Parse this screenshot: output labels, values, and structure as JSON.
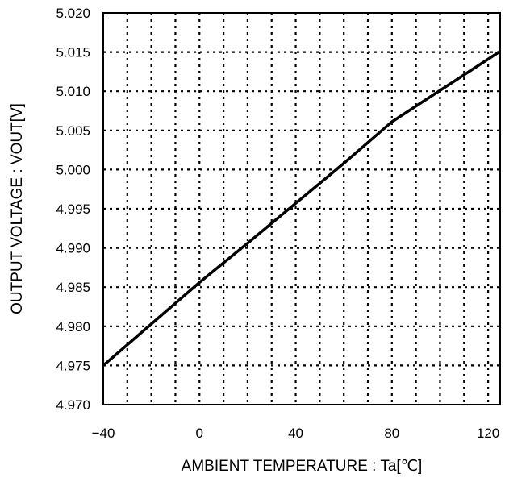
{
  "chart_data": {
    "type": "line",
    "title": "",
    "xlabel": "AMBIENT TEMPERATURE : Ta[℃]",
    "ylabel": "OUTPUT VOLTAGE : VOUT[V]",
    "xlim": [
      -40,
      125
    ],
    "ylim": [
      4.97,
      5.02
    ],
    "x_ticks": [
      -40,
      0,
      40,
      80,
      120
    ],
    "x_tick_labels": [
      "−40",
      "0",
      "40",
      "80",
      "120"
    ],
    "y_ticks": [
      4.97,
      4.975,
      4.98,
      4.985,
      4.99,
      4.995,
      5.0,
      5.005,
      5.01,
      5.015,
      5.02
    ],
    "y_tick_labels": [
      "4.970",
      "4.975",
      "4.980",
      "4.985",
      "4.990",
      "4.995",
      "5.000",
      "5.005",
      "5.010",
      "5.015",
      "5.020"
    ],
    "x_minor_step": 10,
    "grid": true,
    "grid_style": "dotted",
    "legend": "none",
    "colors": {
      "line": "#000000",
      "grid": "#000000",
      "frame": "#000000"
    },
    "series": [
      {
        "x": [
          -40,
          -20,
          0,
          20,
          40,
          60,
          80,
          100,
          125
        ],
        "y": [
          4.975,
          4.9803,
          4.9856,
          4.9906,
          4.9957,
          5.0008,
          5.0061,
          5.0101,
          5.0151
        ]
      }
    ]
  }
}
